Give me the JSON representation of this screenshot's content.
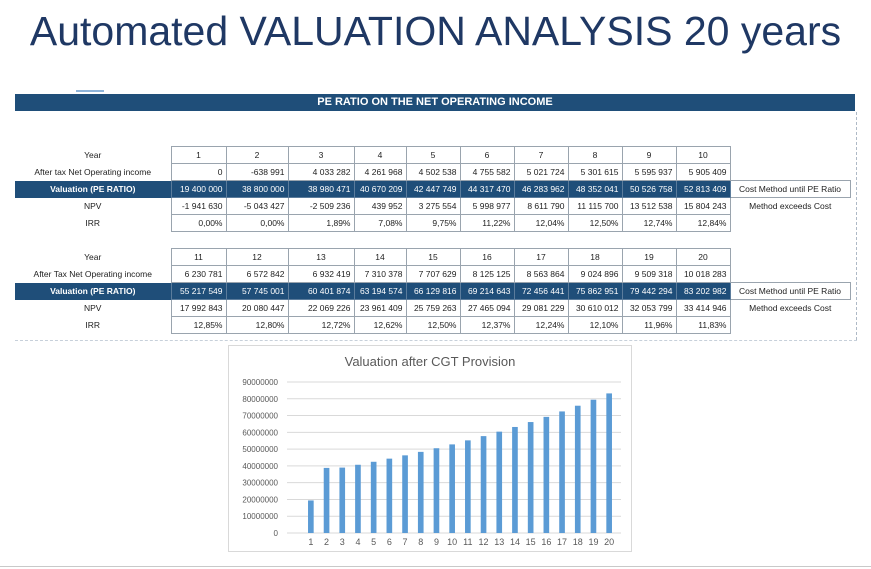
{
  "title": "Automated VALUATION ANALYSIS 20 years",
  "sheet_header": "PE RATIO ON THE NET OPERATING INCOME",
  "blocks": [
    {
      "years": [
        "1",
        "2",
        "3",
        "4",
        "5",
        "6",
        "7",
        "8",
        "9",
        "10"
      ],
      "rows": {
        "year_label": "Year",
        "income_label": "After tax Net Operating income",
        "valuation_label": "Valuation (PE RATIO)",
        "npv_label": "NPV",
        "irr_label": "IRR"
      },
      "income": [
        "0",
        "-638 991",
        "4 033 282",
        "4 261 968",
        "4 502 538",
        "4 755 582",
        "5 021 724",
        "5 301 615",
        "5 595 937",
        "5 905 409"
      ],
      "valuation": [
        "19 400 000",
        "38 800 000",
        "38 980 471",
        "40 670 209",
        "42 447 749",
        "44 317 470",
        "46 283 962",
        "48 352 041",
        "50 526 758",
        "52 813 409"
      ],
      "npv": [
        "-1 941 630",
        "-5 043 427",
        "-2 509 236",
        "439 952",
        "3 275 554",
        "5 998 977",
        "8 611 790",
        "11 115 700",
        "13 512 538",
        "15 804 243"
      ],
      "irr": [
        "0,00%",
        "0,00%",
        "1,89%",
        "7,08%",
        "9,75%",
        "11,22%",
        "12,04%",
        "12,50%",
        "12,74%",
        "12,84%"
      ],
      "note_valuation": "Cost Method until PE Ratio",
      "note_npv": "Method exceeds Cost"
    },
    {
      "years": [
        "11",
        "12",
        "13",
        "14",
        "15",
        "16",
        "17",
        "18",
        "19",
        "20"
      ],
      "rows": {
        "year_label": "Year",
        "income_label": "After Tax Net Operating income",
        "valuation_label": "Valuation (PE RATIO)",
        "npv_label": "NPV",
        "irr_label": "IRR"
      },
      "income": [
        "6 230 781",
        "6 572 842",
        "6 932 419",
        "7 310 378",
        "7 707 629",
        "8 125 125",
        "8 563 864",
        "9 024 896",
        "9 509 318",
        "10 018 283"
      ],
      "valuation": [
        "55 217 549",
        "57 745 001",
        "60 401 874",
        "63 194 574",
        "66 129 816",
        "69 214 643",
        "72 456 441",
        "75 862 951",
        "79 442 294",
        "83 202 982"
      ],
      "npv": [
        "17 992 843",
        "20 080 447",
        "22 069 226",
        "23 961 409",
        "25 759 263",
        "27 465 094",
        "29 081 229",
        "30 610 012",
        "32 053 799",
        "33 414 946"
      ],
      "irr": [
        "12,85%",
        "12,80%",
        "12,72%",
        "12,62%",
        "12,50%",
        "12,37%",
        "12,24%",
        "12,10%",
        "11,96%",
        "11,83%"
      ],
      "note_valuation": "Cost Method until PE Ratio",
      "note_npv": "Method exceeds Cost"
    }
  ],
  "chart_data": {
    "type": "bar",
    "title": "Valuation after CGT Provision",
    "categories": [
      "1",
      "2",
      "3",
      "4",
      "5",
      "6",
      "7",
      "8",
      "9",
      "10",
      "11",
      "12",
      "13",
      "14",
      "15",
      "16",
      "17",
      "18",
      "19",
      "20"
    ],
    "values": [
      19400000,
      38800000,
      38980471,
      40670209,
      42447749,
      44317470,
      46283962,
      48352041,
      50526758,
      52813409,
      55217549,
      57745001,
      60401874,
      63194574,
      66129816,
      69214643,
      72456441,
      75862951,
      79442294,
      83202982
    ],
    "ylim": [
      0,
      90000000
    ],
    "yticks": [
      "0",
      "10000000",
      "20000000",
      "30000000",
      "40000000",
      "50000000",
      "60000000",
      "70000000",
      "80000000",
      "90000000"
    ],
    "grid": true,
    "legend": "none",
    "bar_color": "#5b9bd5"
  }
}
